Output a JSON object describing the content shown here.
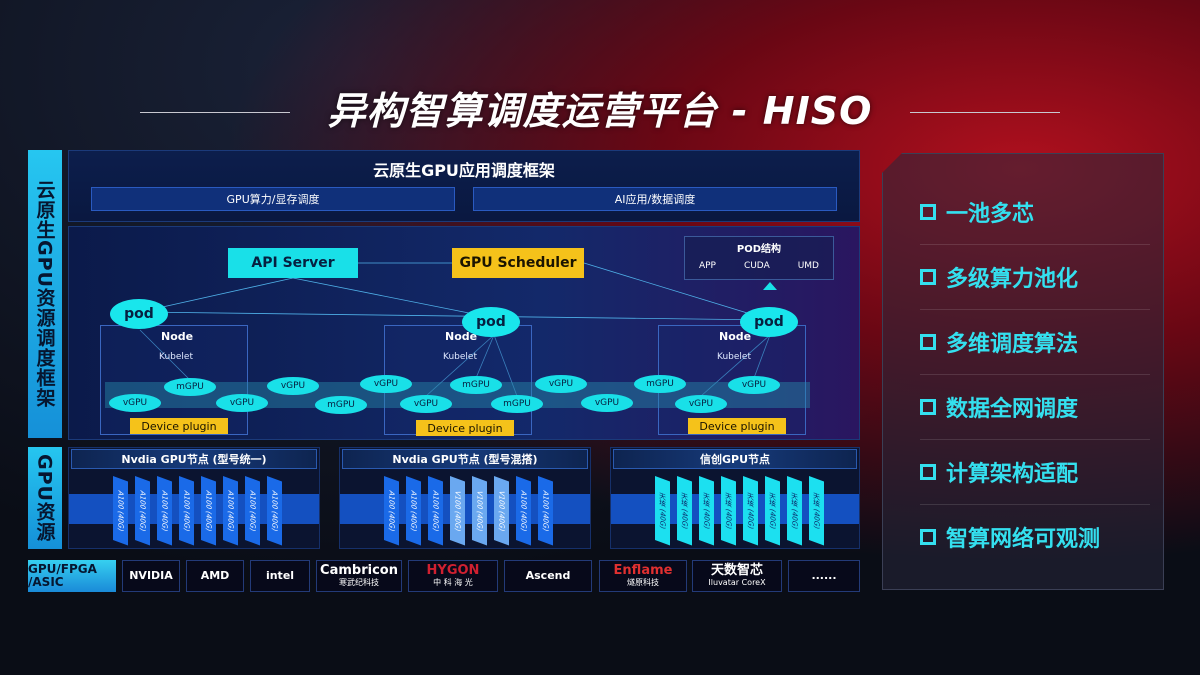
{
  "title": "异构智算调度运营平台 - HISO",
  "left_labels": {
    "framework": "云原生GPU资源调度框架",
    "resources": "GPU资源"
  },
  "header": {
    "title": "云原生GPU应用调度框架",
    "sub": [
      "GPU算力/显存调度",
      "AI应用/数据调度"
    ]
  },
  "diagram": {
    "api_server": "API Server",
    "gpu_scheduler": "GPU Scheduler",
    "pod_structure": {
      "title": "POD结构",
      "items": [
        "APP",
        "CUDA",
        "UMD"
      ]
    },
    "pod": "pod",
    "node": "Node",
    "kubelet": "Kubelet",
    "device_plugin": "Device plugin",
    "units": [
      "vGPU",
      "mGPU",
      "vGPU",
      "vGPU",
      "mGPU",
      "vGPU",
      "vGPU",
      "mGPU",
      "mGPU",
      "vGPU",
      "vGPU",
      "mGPU",
      "vGPU",
      "vGPU"
    ],
    "colors": {
      "cyan": "#19e0e8",
      "gold": "#f5c21a"
    }
  },
  "gpu_nodes": [
    {
      "title": "Nvdia GPU节点 (型号统一)",
      "cards": [
        "A100 (40G)",
        "A100 (40G)",
        "A100 (40G)",
        "A100 (40G)",
        "A100 (40G)",
        "A100 (40G)",
        "A100 (40G)",
        "A100 (40G)"
      ]
    },
    {
      "title": "Nvdia GPU节点 (型号混搭)",
      "cards": [
        "A100 (40G)",
        "A100 (40G)",
        "A100 (40G)",
        "V100 (40G)",
        "V100 (40G)",
        "V100 (40G)",
        "A100 (40G)",
        "A100 (40G)"
      ]
    },
    {
      "title": "信创GPU节点",
      "cards": [
        "天垓 (40G)",
        "天垓 (40G)",
        "天垓 (40G)",
        "天垓 (40G)",
        "天垓 (40G)",
        "天垓 (40G)",
        "天垓 (40G)",
        "天垓 (40G)"
      ]
    }
  ],
  "vendors": {
    "label": "GPU/FPGA /ASIC",
    "items": [
      {
        "name": "NVIDIA"
      },
      {
        "name": "AMD"
      },
      {
        "name": "intel"
      },
      {
        "name": "Cambricon",
        "sub": "寒武纪科技"
      },
      {
        "name": "HYGON",
        "sub": "中 科 海 光"
      },
      {
        "name": "Ascend"
      },
      {
        "name": "Enflame",
        "sub": "燧原科技"
      },
      {
        "name": "天数智芯",
        "sub": "Iluvatar CoreX"
      },
      {
        "name": "......"
      }
    ]
  },
  "features": [
    "一池多芯",
    "多级算力池化",
    "多维调度算法",
    "数据全网调度",
    "计算架构适配",
    "智算网络可观测"
  ]
}
